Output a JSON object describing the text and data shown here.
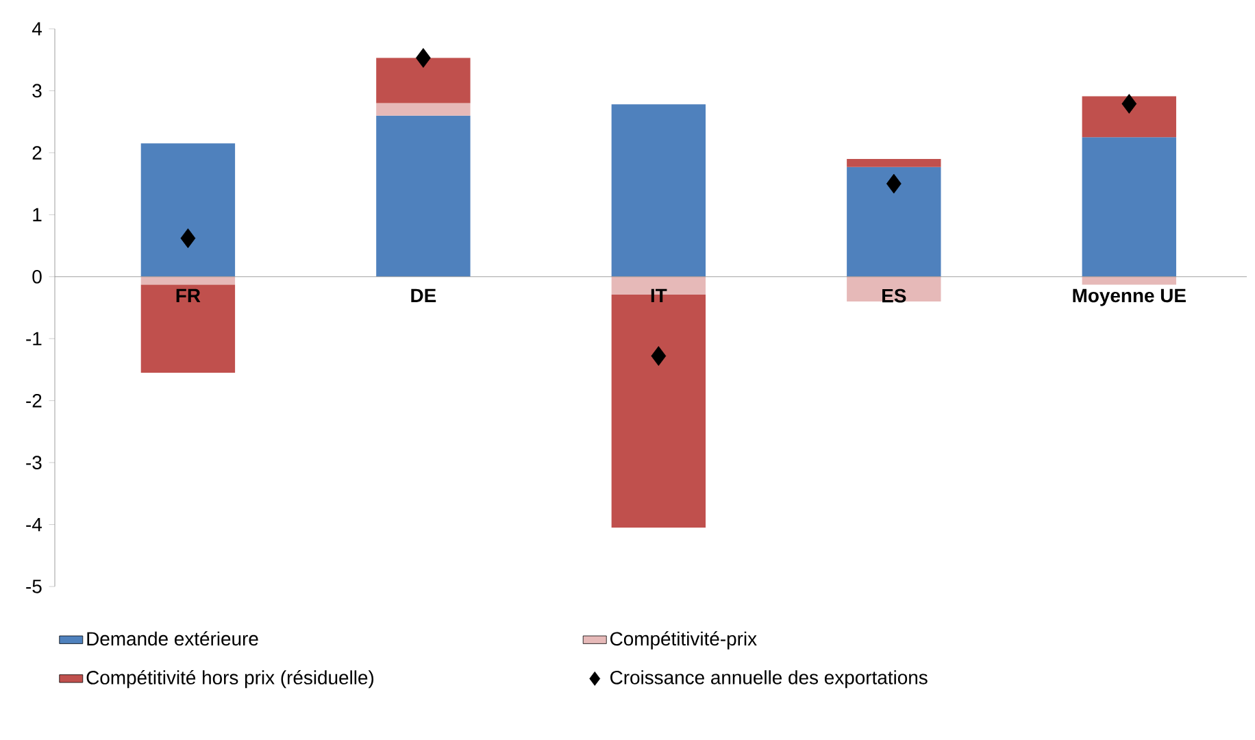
{
  "chart_data": {
    "type": "bar",
    "stacked": true,
    "categories": [
      "FR",
      "DE",
      "IT",
      "ES",
      "Moyenne UE"
    ],
    "series": [
      {
        "name": "Demande extérieure",
        "color": "#4f81bd",
        "values": [
          2.15,
          2.6,
          2.78,
          1.77,
          2.25
        ]
      },
      {
        "name": "Compétitivité-prix",
        "color": "#e6b9b8",
        "values": [
          -0.13,
          0.2,
          -0.29,
          -0.4,
          -0.13
        ]
      },
      {
        "name": "Compétitivité hors prix (résiduelle)",
        "color": "#c0504d",
        "values": [
          -1.42,
          0.73,
          -3.76,
          0.13,
          0.66
        ]
      },
      {
        "name": "Croissance annuelle des exportations",
        "type": "scatter",
        "color": "#000000",
        "values": [
          0.62,
          3.53,
          -1.28,
          1.5,
          2.79
        ]
      }
    ],
    "ylim": [
      -5,
      4
    ],
    "yticks": [
      -5,
      -4,
      -3,
      -2,
      -1,
      0,
      1,
      2,
      3,
      4
    ],
    "legend": "bottom",
    "marker": "diamond",
    "grid": false
  }
}
